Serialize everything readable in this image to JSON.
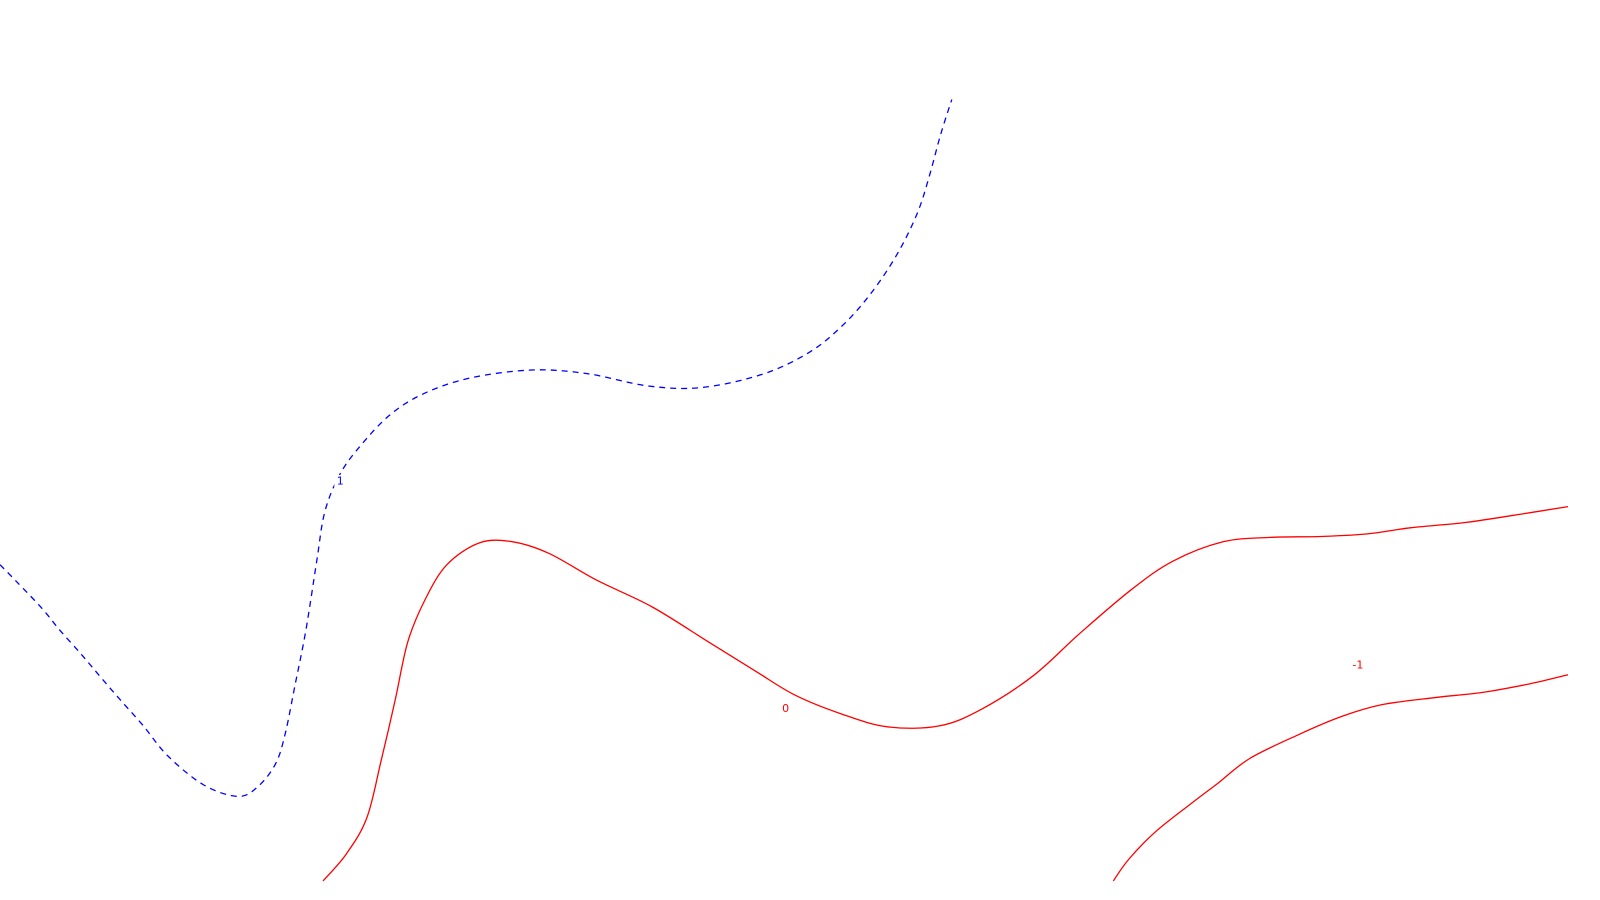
{
  "chart_data": {
    "type": "contour",
    "title": "",
    "xlabel": "",
    "ylabel": "",
    "grid": false,
    "legend": "none",
    "levels": [
      {
        "level": 1,
        "label": "1",
        "color": "#0000ff",
        "style": "dashed",
        "points": [
          [
            0,
            0.359
          ],
          [
            0.011,
            0.339
          ],
          [
            0.027,
            0.309
          ],
          [
            0.038,
            0.285
          ],
          [
            0.051,
            0.259
          ],
          [
            0.062,
            0.236
          ],
          [
            0.076,
            0.207
          ],
          [
            0.091,
            0.177
          ],
          [
            0.107,
            0.142
          ],
          [
            0.13,
            0.109
          ],
          [
            0.152,
            0.096
          ],
          [
            0.165,
            0.108
          ],
          [
            0.176,
            0.134
          ],
          [
            0.182,
            0.168
          ],
          [
            0.188,
            0.221
          ],
          [
            0.195,
            0.284
          ],
          [
            0.202,
            0.363
          ],
          [
            0.207,
            0.418
          ],
          [
            0.216,
            0.459
          ],
          [
            0.228,
            0.49
          ],
          [
            0.248,
            0.528
          ],
          [
            0.27,
            0.553
          ],
          [
            0.3,
            0.571
          ],
          [
            0.339,
            0.58
          ],
          [
            0.374,
            0.576
          ],
          [
            0.413,
            0.562
          ],
          [
            0.447,
            0.56
          ],
          [
            0.486,
            0.575
          ],
          [
            0.516,
            0.6
          ],
          [
            0.537,
            0.63
          ],
          [
            0.555,
            0.666
          ],
          [
            0.572,
            0.711
          ],
          [
            0.585,
            0.758
          ],
          [
            0.593,
            0.802
          ],
          [
            0.6,
            0.848
          ],
          [
            0.607,
            0.887
          ]
        ]
      },
      {
        "level": 0,
        "label": "0",
        "color": "#ff0000",
        "style": "solid",
        "points": [
          [
            0.206,
            0
          ],
          [
            0.221,
            0.031
          ],
          [
            0.234,
            0.072
          ],
          [
            0.243,
            0.136
          ],
          [
            0.252,
            0.205
          ],
          [
            0.26,
            0.271
          ],
          [
            0.271,
            0.319
          ],
          [
            0.285,
            0.359
          ],
          [
            0.306,
            0.384
          ],
          [
            0.327,
            0.385
          ],
          [
            0.35,
            0.372
          ],
          [
            0.38,
            0.342
          ],
          [
            0.416,
            0.311
          ],
          [
            0.453,
            0.27
          ],
          [
            0.482,
            0.238
          ],
          [
            0.507,
            0.211
          ],
          [
            0.536,
            0.19
          ],
          [
            0.566,
            0.175
          ],
          [
            0.599,
            0.176
          ],
          [
            0.626,
            0.195
          ],
          [
            0.659,
            0.233
          ],
          [
            0.688,
            0.28
          ],
          [
            0.721,
            0.33
          ],
          [
            0.748,
            0.363
          ],
          [
            0.78,
            0.385
          ],
          [
            0.81,
            0.39
          ],
          [
            0.842,
            0.391
          ],
          [
            0.872,
            0.394
          ],
          [
            0.9,
            0.401
          ],
          [
            0.935,
            0.407
          ],
          [
            0.972,
            0.417
          ],
          [
            1,
            0.425
          ]
        ]
      },
      {
        "level": -1,
        "label": "-1",
        "color": "#ff0000",
        "style": "solid",
        "points": [
          [
            0.71,
            0
          ],
          [
            0.72,
            0.025
          ],
          [
            0.737,
            0.056
          ],
          [
            0.759,
            0.087
          ],
          [
            0.776,
            0.11
          ],
          [
            0.797,
            0.139
          ],
          [
            0.828,
            0.166
          ],
          [
            0.856,
            0.187
          ],
          [
            0.881,
            0.2
          ],
          [
            0.914,
            0.208
          ],
          [
            0.945,
            0.214
          ],
          [
            0.976,
            0.224
          ],
          [
            1,
            0.234
          ]
        ]
      }
    ],
    "label_positions": [
      {
        "level": 1,
        "x": 0.217,
        "y": 0.454
      },
      {
        "level": 0,
        "x": 0.501,
        "y": 0.196
      },
      {
        "level": -1,
        "x": 0.866,
        "y": 0.245
      }
    ]
  }
}
